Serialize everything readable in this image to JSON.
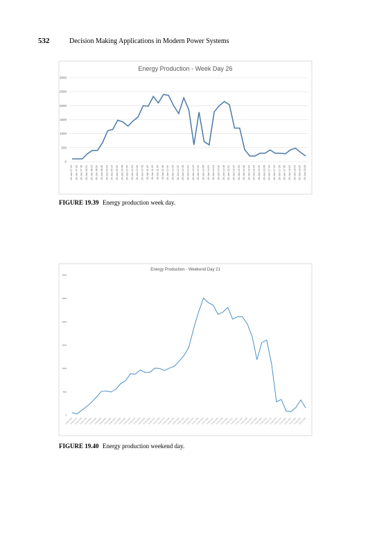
{
  "header": {
    "page_number": "532",
    "title": "Decision Making Applications in Modern Power Systems"
  },
  "chart_data": [
    {
      "type": "line",
      "title": "Energy Production - Week Day 26",
      "grid": true,
      "categories": [
        "26-Jan 07:15",
        "26-Jan 07:30",
        "26-Jan 07:45",
        "26-Jan 08:00",
        "26-Jan 08:15",
        "26-Jan 08:30",
        "26-Jan 08:45",
        "26-Jan 09:00",
        "26-Jan 09:15",
        "26-Jan 09:30",
        "26-Jan 09:45",
        "26-Jan 10:00",
        "26-Jan 10:15",
        "26-Jan 10:30",
        "26-Jan 10:45",
        "26-Jan 11:00",
        "26-Jan 11:15",
        "26-Jan 11:30",
        "26-Jan 11:45",
        "26-Jan 12:00",
        "26-Jan 12:15",
        "26-Jan 12:30",
        "26-Jan 12:45",
        "26-Jan 13:00",
        "26-Jan 13:15",
        "26-Jan 13:30",
        "26-Jan 13:45",
        "26-Jan 14:00",
        "26-Jan 14:15",
        "26-Jan 14:30",
        "26-Jan 14:45",
        "26-Jan 15:00",
        "26-Jan 15:15",
        "26-Jan 15:30",
        "26-Jan 15:45",
        "26-Jan 16:00",
        "26-Jan 16:15",
        "26-Jan 16:30",
        "26-Jan 16:45",
        "26-Jan 17:00",
        "26-Jan 17:15",
        "26-Jan 17:30",
        "26-Jan 17:45",
        "26-Jan 18:00",
        "26-Jan 18:15",
        "26-Jan 18:30",
        "26-Jan 18:45"
      ],
      "values": [
        100,
        100,
        100,
        280,
        400,
        400,
        680,
        1100,
        1150,
        1480,
        1420,
        1270,
        1450,
        1600,
        2000,
        1980,
        2330,
        2100,
        2400,
        2370,
        2000,
        1720,
        2280,
        1850,
        600,
        1770,
        720,
        600,
        1780,
        2000,
        2150,
        2030,
        1200,
        1200,
        430,
        200,
        200,
        300,
        300,
        420,
        300,
        300,
        280,
        420,
        480,
        330,
        200
      ],
      "color": "#4a78a8",
      "ylim": [
        0,
        3000
      ],
      "yticks": [
        0,
        500,
        1000,
        1500,
        2000,
        2500,
        3000
      ]
    },
    {
      "type": "line",
      "title": "Energy Production - Weekend Day 21",
      "grid": false,
      "categories": [
        "21-Jan 07:00",
        "21-Jan 07:15",
        "21-Jan 07:30",
        "21-Jan 07:45",
        "21-Jan 08:00",
        "21-Jan 08:15",
        "21-Jan 08:30",
        "21-Jan 08:45",
        "21-Jan 09:00",
        "21-Jan 09:15",
        "21-Jan 09:30",
        "21-Jan 09:45",
        "21-Jan 10:00",
        "21-Jan 10:15",
        "21-Jan 10:30",
        "21-Jan 10:45",
        "21-Jan 11:00",
        "21-Jan 11:15",
        "21-Jan 11:30",
        "21-Jan 11:45",
        "21-Jan 12:00",
        "21-Jan 12:15",
        "21-Jan 12:30",
        "21-Jan 12:45",
        "21-Jan 13:00",
        "21-Jan 13:15",
        "21-Jan 13:30",
        "21-Jan 13:45",
        "21-Jan 14:00",
        "21-Jan 14:15",
        "21-Jan 14:30",
        "21-Jan 14:45",
        "21-Jan 15:00",
        "21-Jan 15:15",
        "21-Jan 15:30",
        "21-Jan 15:45",
        "21-Jan 16:00",
        "21-Jan 16:15",
        "21-Jan 16:30",
        "21-Jan 16:45",
        "21-Jan 17:00",
        "21-Jan 17:15",
        "21-Jan 17:30",
        "21-Jan 17:45",
        "21-Jan 18:00",
        "21-Jan 18:15",
        "21-Jan 18:30",
        "21-Jan 18:45",
        "21-Jan 19:00"
      ],
      "values": [
        50,
        20,
        100,
        180,
        270,
        380,
        500,
        510,
        490,
        550,
        670,
        730,
        880,
        870,
        960,
        910,
        910,
        1000,
        990,
        950,
        1000,
        1040,
        1150,
        1270,
        1450,
        1850,
        2200,
        2500,
        2400,
        2350,
        2150,
        2200,
        2300,
        2050,
        2100,
        2100,
        1950,
        1680,
        1180,
        1550,
        1600,
        1090,
        280,
        330,
        80,
        70,
        160,
        320,
        150
      ],
      "color": "#4a8fc8",
      "ylim": [
        0,
        3000
      ],
      "yticks": [
        0,
        500,
        1000,
        1500,
        2000,
        2500,
        3000
      ]
    }
  ],
  "captions": [
    {
      "label": "FIGURE 19.39",
      "text": "Energy production week day."
    },
    {
      "label": "FIGURE 19.40",
      "text": "Energy production weekend day."
    }
  ]
}
